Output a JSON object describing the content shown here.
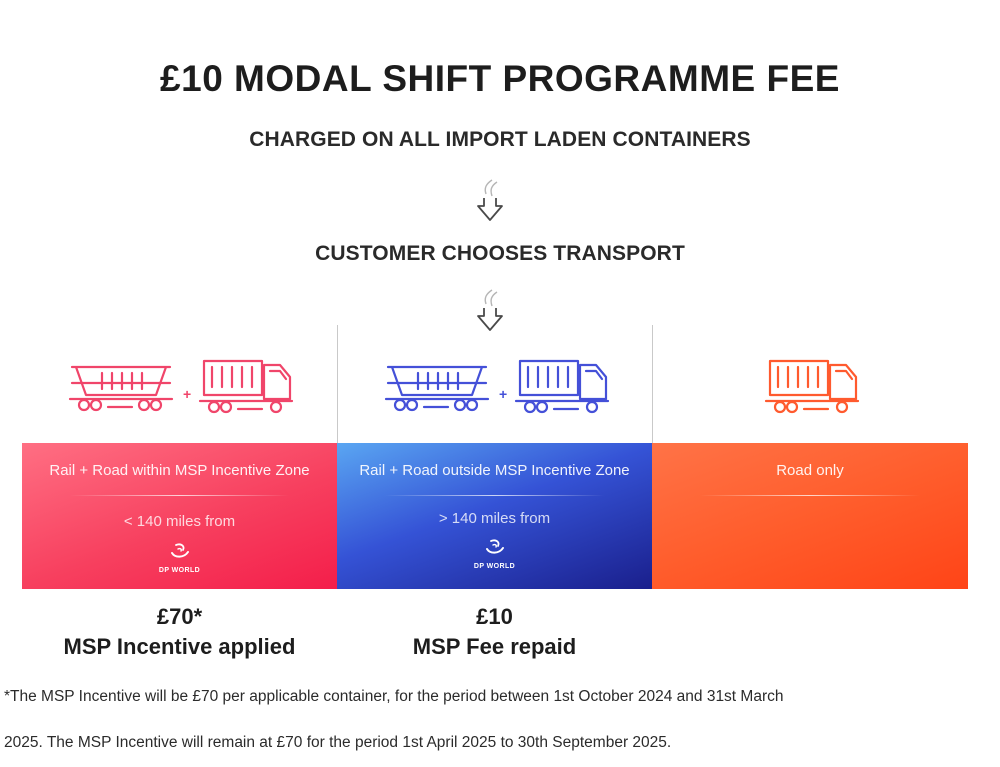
{
  "title": "£10  MODAL SHIFT PROGRAMME FEE",
  "step1": "CHARGED ON ALL IMPORT LADEN CONTAINERS",
  "step2": "CUSTOMER CHOOSES TRANSPORT",
  "options": [
    {
      "heading": "Rail + Road within MSP Incentive Zone",
      "distance": "< 140 miles from",
      "logo_text": "DP WORLD",
      "amount": "£70*",
      "amount_label": "MSP Incentive applied",
      "vehicles": [
        "train-icon",
        "plus-icon",
        "truck-icon"
      ],
      "icon_color": "#f0456a"
    },
    {
      "heading": "Rail + Road outside MSP Incentive Zone",
      "distance": "> 140 miles from",
      "logo_text": "DP WORLD",
      "amount": "£10",
      "amount_label": "MSP Fee repaid",
      "vehicles": [
        "train-icon",
        "plus-icon",
        "truck-icon"
      ],
      "icon_color": "#4450d8"
    },
    {
      "heading": "Road only",
      "vehicles": [
        "truck-icon"
      ],
      "icon_color": "#ff5a2e"
    }
  ],
  "footnote": {
    "line1": "*The MSP Incentive will be £70 per applicable container, for the period between 1st October 2024 and 31st March",
    "line2": "2025. The MSP Incentive will remain at £70 for the period 1st April 2025 to 30th September 2025."
  },
  "colors": {
    "rail_road_within": "#f7405f",
    "rail_road_outside": "#2b3fc4",
    "road_only": "#ff5a2e",
    "text": "#1d1d1d"
  }
}
